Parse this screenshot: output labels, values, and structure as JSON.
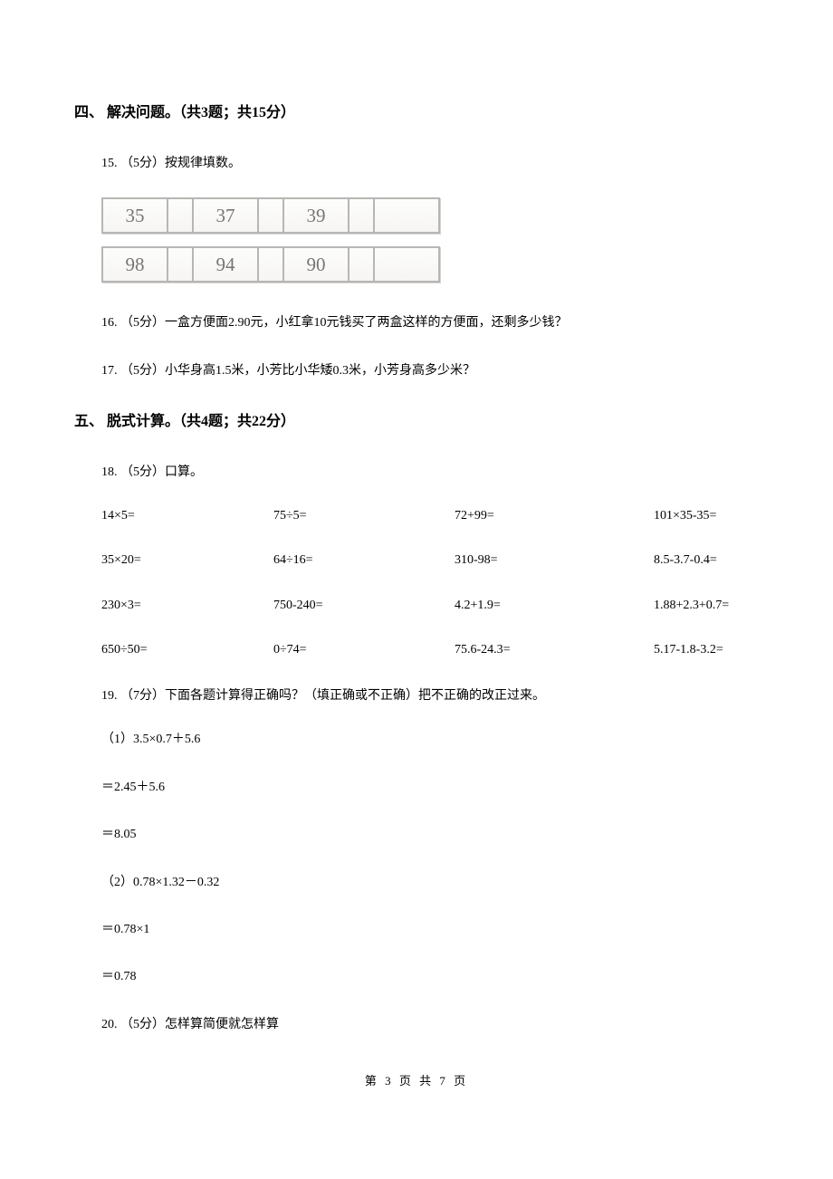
{
  "section4": {
    "heading": "四、 解决问题。（共3题；共15分）",
    "q15": {
      "prefix": "15. （5分）按规律填数。",
      "table1": {
        "cells": [
          "35",
          "",
          "37",
          "",
          "39",
          "",
          ""
        ]
      },
      "table2": {
        "cells": [
          "98",
          "",
          "94",
          "",
          "90",
          "",
          ""
        ]
      }
    },
    "q16": "16. （5分）一盒方便面2.90元，小红拿10元钱买了两盒这样的方便面，还剩多少钱？",
    "q17": "17. （5分）小华身高1.5米，小芳比小华矮0.3米，小芳身高多少米？"
  },
  "section5": {
    "heading": "五、 脱式计算。（共4题；共22分）",
    "q18": {
      "prefix": "18. （5分）口算。",
      "rows": [
        [
          "14×5=",
          "75÷5=",
          "72+99=",
          "101×35-35="
        ],
        [
          "35×20=",
          "64÷16=",
          "310-98=",
          "8.5-3.7-0.4="
        ],
        [
          "230×3=",
          "750-240=",
          "4.2+1.9=",
          "1.88+2.3+0.7="
        ],
        [
          "650÷50=",
          "0÷74=",
          "75.6-24.3=",
          "5.17-1.8-3.2="
        ]
      ]
    },
    "q19": {
      "prefix": "19. （7分）下面各题计算得正确吗？（填正确或不正确）把不正确的改正过来。",
      "sub1": [
        "（1）3.5×0.7＋5.6",
        "＝2.45＋5.6",
        "＝8.05"
      ],
      "sub2": [
        "（2）0.78×1.32－0.32",
        "＝0.78×1",
        "＝0.78"
      ]
    },
    "q20": "20. （5分）怎样算简便就怎样算"
  },
  "footer": "第 3 页 共 7 页"
}
